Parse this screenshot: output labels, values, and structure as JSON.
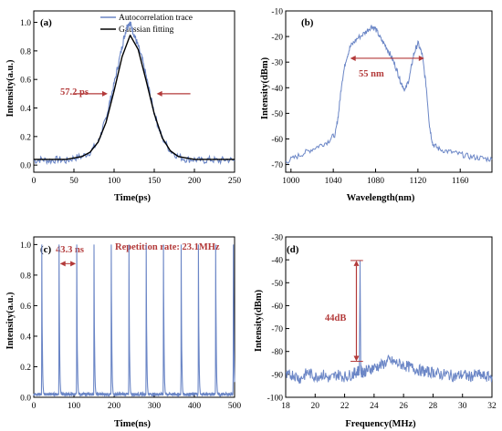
{
  "chart_data": [
    {
      "id": "a",
      "type": "line",
      "panel_label": "(a)",
      "xlabel": "Time(ps)",
      "ylabel": "Intensity(a.u.)",
      "xlim": [
        0,
        250
      ],
      "ylim": [
        -0.05,
        1.08
      ],
      "xticks": [
        0,
        50,
        100,
        150,
        200,
        250
      ],
      "yticks": [
        0.0,
        0.2,
        0.4,
        0.6,
        0.8,
        1.0
      ],
      "legend_position": "top-right",
      "series": [
        {
          "name": "Autocorrelation trace",
          "color": "#6b86c6",
          "x": [
            0,
            10,
            20,
            30,
            40,
            50,
            60,
            70,
            80,
            85,
            90,
            95,
            100,
            105,
            110,
            113,
            116,
            119,
            121,
            124,
            127,
            130,
            135,
            140,
            145,
            150,
            155,
            160,
            170,
            180,
            190,
            200,
            210,
            220,
            230,
            240,
            250
          ],
          "y": [
            0.03,
            0.04,
            0.03,
            0.04,
            0.03,
            0.05,
            0.06,
            0.09,
            0.16,
            0.24,
            0.33,
            0.45,
            0.57,
            0.7,
            0.83,
            0.91,
            0.97,
            1.0,
            0.98,
            0.93,
            0.88,
            0.83,
            0.74,
            0.62,
            0.49,
            0.37,
            0.27,
            0.19,
            0.1,
            0.06,
            0.04,
            0.04,
            0.03,
            0.04,
            0.03,
            0.04,
            0.03
          ]
        },
        {
          "name": "Gaussian fitting",
          "color": "#000000",
          "x": [
            0,
            20,
            40,
            60,
            70,
            80,
            90,
            100,
            110,
            120,
            130,
            140,
            150,
            160,
            170,
            180,
            200,
            220,
            250
          ],
          "y": [
            0.04,
            0.04,
            0.04,
            0.06,
            0.09,
            0.16,
            0.3,
            0.52,
            0.76,
            0.91,
            0.81,
            0.59,
            0.36,
            0.19,
            0.1,
            0.06,
            0.04,
            0.04,
            0.04
          ]
        }
      ],
      "annotation": {
        "text": "57.2 ps"
      }
    },
    {
      "id": "b",
      "type": "line",
      "panel_label": "(b)",
      "xlabel": "Wavelength(nm)",
      "ylabel": "Intensity(dBm)",
      "xlim": [
        995,
        1190
      ],
      "ylim": [
        -73,
        -10
      ],
      "xticks": [
        1000,
        1040,
        1080,
        1120,
        1160
      ],
      "yticks": [
        -70,
        -60,
        -50,
        -40,
        -30,
        -20,
        -10
      ],
      "series": [
        {
          "name": "",
          "color": "#6b86c6",
          "x": [
            995,
            1005,
            1015,
            1025,
            1035,
            1042,
            1045,
            1048,
            1052,
            1056,
            1062,
            1070,
            1076,
            1080,
            1085,
            1090,
            1095,
            1100,
            1104,
            1108,
            1112,
            1116,
            1120,
            1124,
            1128,
            1131,
            1134,
            1140,
            1150,
            1160,
            1170,
            1180,
            1190
          ],
          "y": [
            -69,
            -67,
            -65,
            -63,
            -61,
            -58,
            -50,
            -38,
            -29,
            -24,
            -21,
            -18.5,
            -16,
            -17,
            -21,
            -24,
            -28,
            -33,
            -38,
            -41,
            -36,
            -27,
            -22.5,
            -27,
            -40,
            -55,
            -62,
            -64,
            -65,
            -66,
            -67,
            -67.5,
            -68
          ]
        }
      ],
      "annotation": {
        "text": "55 nm"
      }
    },
    {
      "id": "c",
      "type": "line",
      "panel_label": "(c)",
      "xlabel": "Time(ns)",
      "ylabel": "Intensity(a.u.)",
      "xlim": [
        0,
        500
      ],
      "ylim": [
        0,
        1.05
      ],
      "xticks": [
        0,
        100,
        200,
        300,
        400,
        500
      ],
      "yticks": [
        0.0,
        0.2,
        0.4,
        0.6,
        0.8,
        1.0
      ],
      "series": [
        {
          "name": "",
          "color": "#6b86c6",
          "pulse_times": [
            20,
            63,
            107,
            150,
            193,
            237,
            280,
            323,
            367,
            410,
            453,
            497
          ],
          "pulse_peak": 1.0,
          "baseline": 0.02
        }
      ],
      "annotation_period": {
        "text": "43.3 ns"
      },
      "annotation_rate": {
        "text": "Repetition rate: 23.1MHz"
      }
    },
    {
      "id": "d",
      "type": "line",
      "panel_label": "(d)",
      "xlabel": "Frequency(MHz)",
      "ylabel": "Intensity(dBm)",
      "xlim": [
        18,
        32
      ],
      "ylim": [
        -100,
        -30
      ],
      "xticks": [
        18,
        20,
        22,
        24,
        26,
        28,
        30,
        32
      ],
      "yticks": [
        -100,
        -90,
        -80,
        -70,
        -60,
        -50,
        -40,
        -30
      ],
      "series": [
        {
          "name": "",
          "color": "#6b86c6",
          "x": [
            18,
            18.5,
            19,
            19.5,
            20,
            20.5,
            21,
            21.5,
            22,
            22.5,
            22.8,
            23.0,
            23.05,
            23.1,
            23.15,
            23.3,
            23.6,
            24,
            24.5,
            25,
            25.5,
            26,
            26.5,
            27,
            27.5,
            28,
            28.5,
            29,
            29.5,
            30,
            30.5,
            31,
            31.5,
            32
          ],
          "y": [
            -91,
            -90,
            -92,
            -89,
            -91,
            -90,
            -92,
            -90,
            -91,
            -90,
            -89,
            -88,
            -40.3,
            -88,
            -89,
            -89,
            -88,
            -87,
            -86,
            -84,
            -85,
            -86,
            -87,
            -88,
            -89,
            -89,
            -90,
            -90,
            -91,
            -90,
            -91,
            -90,
            -91,
            -91
          ]
        }
      ],
      "annotation": {
        "text": "44dB"
      }
    }
  ]
}
